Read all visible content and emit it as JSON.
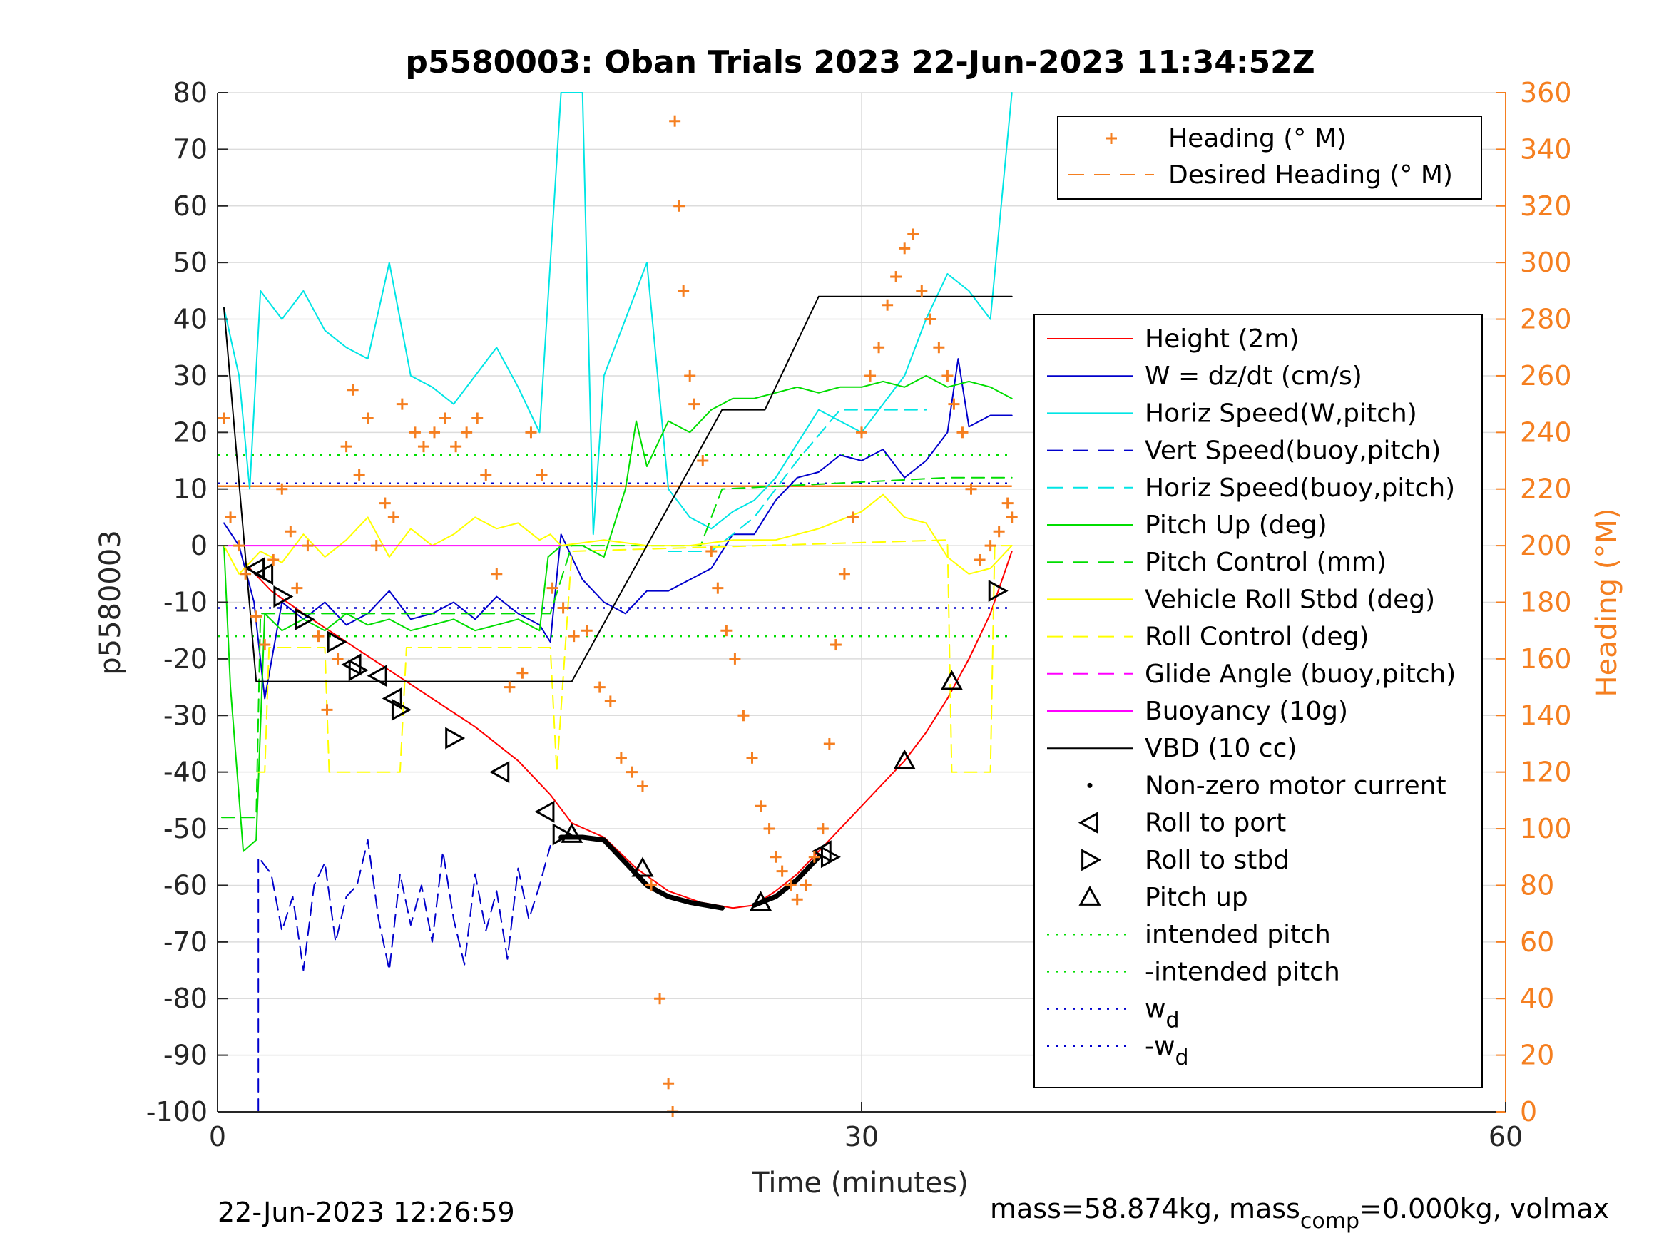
{
  "chart_data": {
    "type": "line",
    "title": "p5580003: Oban Trials 2023 22-Jun-2023 11:34:52Z",
    "xlabel": "Time (minutes)",
    "ylabel": "p5580003",
    "ylabel_right": "Heading (°M)",
    "xlim": [
      0,
      60
    ],
    "ylim": [
      -100,
      80
    ],
    "ylim_right": [
      0,
      360
    ],
    "xticks": [
      "0",
      "30",
      "60"
    ],
    "yticks": [
      "80",
      "70",
      "60",
      "50",
      "40",
      "30",
      "20",
      "10",
      "0",
      "-10",
      "-20",
      "-30",
      "-40",
      "-50",
      "-60",
      "-70",
      "-80",
      "-90",
      "-100"
    ],
    "yticks_right": [
      "360",
      "340",
      "320",
      "300",
      "280",
      "260",
      "240",
      "220",
      "200",
      "180",
      "160",
      "140",
      "120",
      "100",
      "80",
      "60",
      "40",
      "20",
      "0"
    ],
    "grid": true,
    "colors": {
      "height": "#ff0000",
      "w": "#0000cc",
      "horiz_speed": "#00e5e5",
      "pitch": "#00dd00",
      "roll": "#ffff00",
      "glide": "#ff00ff",
      "buoyancy": "#ff00ff",
      "vbd": "#000000",
      "heading": "#f57f20",
      "axis_right": "#f57f20"
    },
    "legend_heading": [
      {
        "label": "Heading (° M)",
        "style": "plus",
        "color": "#f57f20"
      },
      {
        "label": "Desired Heading (° M)",
        "style": "dash",
        "color": "#f57f20"
      }
    ],
    "legend_main": [
      {
        "label": "Height (2m)",
        "style": "solid",
        "color": "#ff0000"
      },
      {
        "label": "W = dz/dt (cm/s)",
        "style": "solid",
        "color": "#0000cc"
      },
      {
        "label": "Horiz Speed(W,pitch)",
        "style": "solid",
        "color": "#00e5e5"
      },
      {
        "label": "Vert Speed(buoy,pitch)",
        "style": "dash",
        "color": "#0000cc"
      },
      {
        "label": "Horiz Speed(buoy,pitch)",
        "style": "dash",
        "color": "#00e5e5"
      },
      {
        "label": "Pitch Up (deg)",
        "style": "solid",
        "color": "#00dd00"
      },
      {
        "label": "Pitch Control (mm)",
        "style": "dash",
        "color": "#00dd00"
      },
      {
        "label": "Vehicle Roll Stbd (deg)",
        "style": "solid",
        "color": "#ffff00"
      },
      {
        "label": "Roll Control (deg)",
        "style": "dash",
        "color": "#ffff00"
      },
      {
        "label": "Glide Angle (buoy,pitch)",
        "style": "dash",
        "color": "#ff00ff"
      },
      {
        "label": "Buoyancy (10g)",
        "style": "solid",
        "color": "#ff00ff"
      },
      {
        "label": "VBD (10 cc)",
        "style": "solid",
        "color": "#000000"
      },
      {
        "label": "Non-zero motor current",
        "style": "dot",
        "color": "#000000"
      },
      {
        "label": "Roll to port",
        "style": "tri-left",
        "color": "#000000"
      },
      {
        "label": "Roll to stbd",
        "style": "tri-right",
        "color": "#000000"
      },
      {
        "label": "Pitch up",
        "style": "tri-up",
        "color": "#000000"
      },
      {
        "label": "intended pitch",
        "style": "dotted",
        "color": "#00dd00"
      },
      {
        "label": "-intended pitch",
        "style": "dotted",
        "color": "#00dd00"
      },
      {
        "label": "w",
        "sub": "d",
        "style": "dotted",
        "color": "#0000cc"
      },
      {
        "label": "-w",
        "sub": "d",
        "style": "dotted",
        "color": "#0000cc"
      }
    ],
    "series": [
      {
        "name": "Height (2m)",
        "kind": "line",
        "color": "#ff0000",
        "width": 2,
        "x": [
          1.5,
          2.5,
          4,
          6,
          8,
          10,
          12,
          14,
          15.5,
          16.5,
          18,
          19.5,
          21,
          22.5,
          24,
          25,
          26,
          27,
          28,
          29,
          30,
          31,
          32,
          33,
          34,
          35,
          36,
          37
        ],
        "y": [
          -4,
          -8,
          -12,
          -17,
          -22,
          -27,
          -32,
          -38,
          -44,
          -49,
          -51.5,
          -57,
          -61,
          -63,
          -64,
          -63.5,
          -61,
          -58,
          -54,
          -50,
          -46,
          -42,
          -38,
          -33,
          -27,
          -20,
          -12,
          -1
        ]
      },
      {
        "name": "W = dz/dt (cm/s)",
        "kind": "line",
        "color": "#0000cc",
        "width": 2,
        "x": [
          0.3,
          1,
          1.7,
          2.2,
          3,
          4,
          5,
          6,
          7,
          8,
          9,
          10,
          11,
          12,
          13,
          14,
          15,
          15.5,
          16,
          17,
          18,
          19,
          20,
          21,
          22,
          23,
          24,
          25,
          26,
          27,
          28,
          29,
          30,
          31,
          32,
          33,
          34,
          34.5,
          35,
          36,
          37
        ],
        "y": [
          4,
          0,
          -10,
          -27,
          -10,
          -13,
          -10,
          -14,
          -12,
          -8,
          -13,
          -12,
          -10,
          -13,
          -9,
          -12,
          -14,
          -17,
          2,
          -6,
          -10,
          -12,
          -8,
          -8,
          -6,
          -4,
          2,
          2,
          8,
          12,
          13,
          16,
          15,
          17,
          12,
          15,
          20,
          33,
          21,
          23,
          23
        ]
      },
      {
        "name": "Horiz Speed(W,pitch)",
        "kind": "line",
        "color": "#00e5e5",
        "width": 2,
        "x": [
          0.3,
          1,
          1.5,
          2,
          3,
          4,
          5,
          6,
          7,
          8,
          9,
          10,
          11,
          12,
          13,
          14,
          15,
          15.5,
          16,
          17,
          17.5,
          18,
          19,
          20,
          21,
          22,
          23,
          24,
          25,
          26,
          27,
          28,
          29,
          30,
          31,
          32,
          33,
          34,
          35,
          36,
          37
        ],
        "y": [
          42,
          30,
          10,
          45,
          40,
          45,
          38,
          35,
          33,
          50,
          30,
          28,
          25,
          30,
          35,
          28,
          20,
          50,
          90,
          90,
          2,
          30,
          40,
          50,
          10,
          5,
          3,
          6,
          8,
          12,
          18,
          24,
          22,
          20,
          25,
          30,
          40,
          48,
          45,
          40,
          90
        ]
      },
      {
        "name": "Horiz Speed(buoy,pitch)",
        "kind": "line",
        "color": "#00e5e5",
        "dash": "18,10",
        "width": 2,
        "x": [
          21,
          23,
          25,
          27,
          29,
          31,
          33
        ],
        "y": [
          -1,
          -1,
          5,
          15,
          24,
          24,
          24
        ]
      },
      {
        "name": "Vert Speed(buoy,pitch)",
        "kind": "line",
        "color": "#0000cc",
        "dash": "18,10",
        "width": 2,
        "x": [
          1.9,
          1.9,
          2.5,
          3,
          3.5,
          4,
          4.5,
          5,
          5.5,
          6,
          6.5,
          7,
          7.5,
          8,
          8.5,
          9,
          9.5,
          10,
          10.5,
          11,
          11.5,
          12,
          12.5,
          13,
          13.5,
          14,
          14.5,
          15,
          15.5
        ],
        "y": [
          -100,
          -55,
          -58,
          -68,
          -62,
          -75,
          -60,
          -56,
          -70,
          -62,
          -60,
          -52,
          -66,
          -75,
          -58,
          -67,
          -60,
          -70,
          -54,
          -66,
          -74,
          -58,
          -68,
          -61,
          -73,
          -57,
          -66,
          -60,
          -53
        ]
      },
      {
        "name": "Pitch Up (deg)",
        "kind": "line",
        "color": "#00dd00",
        "width": 2,
        "x": [
          0.3,
          0.6,
          1.2,
          1.8,
          2.2,
          3,
          4,
          5,
          6,
          7,
          8,
          9,
          10,
          11,
          12,
          13,
          14,
          15,
          15.4,
          16,
          17,
          18,
          19,
          19.5,
          20,
          21,
          22,
          23,
          24,
          25,
          26,
          27,
          28,
          29,
          30,
          31,
          32,
          33,
          34,
          35,
          36,
          37
        ],
        "y": [
          0,
          -25,
          -54,
          -52,
          -12,
          -15,
          -13,
          -15,
          -12,
          -14,
          -13,
          -15,
          -14,
          -13,
          -15,
          -14,
          -13,
          -15,
          -2,
          0,
          0,
          -2,
          10,
          22,
          14,
          22,
          20,
          24,
          26,
          26,
          27,
          28,
          27,
          28,
          28,
          29,
          28,
          30,
          28,
          29,
          28,
          26
        ]
      },
      {
        "name": "Pitch Control (mm)",
        "kind": "line",
        "color": "#00dd00",
        "dash": "18,10",
        "width": 2,
        "x": [
          0.2,
          1.8,
          2.0,
          15.5,
          16.5,
          22.5,
          23.5,
          34,
          37
        ],
        "y": [
          -48,
          -48,
          -12,
          -12,
          0,
          0,
          10,
          12,
          12
        ]
      },
      {
        "name": "Vehicle Roll Stbd (deg)",
        "kind": "line",
        "color": "#ffff00",
        "width": 2,
        "x": [
          0.3,
          1,
          2,
          3,
          4,
          5,
          6,
          7,
          8,
          9,
          10,
          11,
          12,
          13,
          14,
          15,
          15.5,
          16,
          18,
          20,
          22,
          24,
          26,
          28,
          30,
          31,
          32,
          33,
          34,
          35,
          36,
          37
        ],
        "y": [
          0,
          -5,
          -1,
          -3,
          2,
          -2,
          1,
          5,
          -2,
          3,
          0,
          2,
          5,
          3,
          4,
          1,
          2,
          0,
          1,
          0,
          0,
          1,
          1,
          3,
          6,
          9,
          5,
          4,
          -2,
          -5,
          -4,
          0
        ]
      },
      {
        "name": "Roll Control (deg)",
        "kind": "line",
        "color": "#ffff00",
        "dash": "18,10",
        "width": 2,
        "x": [
          1.9,
          2.2,
          2.4,
          3.0,
          5.0,
          5.2,
          8.5,
          8.8,
          15.5,
          15.8,
          16.5,
          34,
          34.2,
          36,
          36.2,
          37
        ],
        "y": [
          -40,
          -40,
          -18,
          -18,
          -18,
          -40,
          -40,
          -18,
          -18,
          -40,
          -1,
          1,
          -40,
          -40,
          0,
          0
        ]
      },
      {
        "name": "Buoyancy (10g)",
        "kind": "line",
        "color": "#ff00ff",
        "width": 2,
        "x": [
          0.5,
          16
        ],
        "y": [
          0,
          0
        ]
      },
      {
        "name": "VBD (10 cc)",
        "kind": "line",
        "color": "#000000",
        "width": 2,
        "x": [
          0.3,
          1.8,
          16.5,
          20,
          23.5,
          25.5,
          28,
          32,
          37
        ],
        "y": [
          42,
          -24,
          -24,
          0,
          24,
          24,
          44,
          44,
          44
        ]
      },
      {
        "name": "Non-zero motor current",
        "kind": "line",
        "color": "#000000",
        "width": 7,
        "x": [
          16,
          17,
          18,
          19,
          20,
          21,
          22,
          23.5
        ],
        "y": [
          -51.5,
          -51.5,
          -52,
          -56,
          -60,
          -62,
          -63,
          -64
        ]
      },
      {
        "name": "Non-zero motor current 2",
        "kind": "line",
        "color": "#000000",
        "width": 7,
        "x": [
          25,
          26,
          27,
          28
        ],
        "y": [
          -63.5,
          -62,
          -59,
          -55
        ]
      }
    ],
    "ref_lines": [
      {
        "name": "intended pitch",
        "y": 16,
        "color": "#00dd00",
        "dash": "3,9"
      },
      {
        "name": "-intended pitch",
        "y": -16,
        "color": "#00dd00",
        "dash": "3,9"
      },
      {
        "name": "w_d",
        "y": 11,
        "color": "#0000cc",
        "dash": "3,9"
      },
      {
        "name": "-w_d",
        "y": -11,
        "color": "#0000cc",
        "dash": "3,9"
      },
      {
        "name": "Desired Heading (° M)",
        "y": 10.5,
        "color": "#f57f20",
        "dash": "none"
      }
    ],
    "markers": {
      "roll_to_port": {
        "x": [
          1.8,
          2.2,
          6.3,
          7.5,
          8.2,
          13.2,
          15.3,
          28.2
        ],
        "y": [
          -4,
          -5,
          -21,
          -23,
          -27,
          -40,
          -47,
          -54
        ]
      },
      "roll_to_stbd": {
        "x": [
          3,
          4,
          5.5,
          6.5,
          8.5,
          11,
          16,
          28.5,
          36.3
        ],
        "y": [
          -9,
          -13,
          -17,
          -22,
          -29,
          -34,
          -51,
          -55,
          -8
        ]
      },
      "pitch_up": {
        "x": [
          16.5,
          19.8,
          25.3,
          32,
          34.2
        ],
        "y": [
          -51,
          -57,
          -63,
          -38,
          -24
        ]
      }
    },
    "heading": {
      "x": [
        0.3,
        0.6,
        1,
        1.3,
        1.8,
        2.2,
        2.6,
        3,
        3.4,
        3.7,
        4.2,
        4.7,
        5.1,
        5.6,
        6,
        6.3,
        6.6,
        7,
        7.4,
        7.8,
        8.2,
        8.6,
        9.2,
        9.6,
        10.1,
        10.6,
        11.1,
        11.6,
        12.1,
        12.5,
        13,
        13.6,
        14.2,
        14.6,
        15.1,
        15.6,
        16.1,
        16.6,
        17.2,
        17.8,
        18.3,
        18.8,
        19.3,
        19.8,
        20.2,
        20.6,
        21,
        21.2,
        21.3,
        21.5,
        21.7,
        22,
        22.2,
        22.6,
        23,
        23.3,
        23.7,
        24.1,
        24.5,
        24.9,
        25.3,
        25.7,
        26,
        26.3,
        26.7,
        27,
        27.4,
        27.8,
        28.2,
        28.5,
        28.8,
        29.2,
        29.6,
        30,
        30.4,
        30.8,
        31.2,
        31.6,
        32,
        32.4,
        32.8,
        33.2,
        33.6,
        34,
        34.3,
        34.7,
        35.1,
        35.5,
        36,
        36.4,
        36.8,
        37
      ],
      "y": [
        245,
        210,
        200,
        190,
        175,
        165,
        195,
        220,
        205,
        185,
        200,
        168,
        142,
        160,
        235,
        255,
        225,
        245,
        200,
        215,
        210,
        250,
        240,
        235,
        240,
        245,
        235,
        240,
        245,
        225,
        190,
        150,
        155,
        240,
        225,
        185,
        178,
        168,
        170,
        150,
        145,
        125,
        120,
        115,
        80,
        40,
        10,
        0,
        350,
        320,
        290,
        260,
        250,
        230,
        198,
        185,
        170,
        160,
        140,
        125,
        108,
        100,
        90,
        85,
        80,
        75,
        80,
        90,
        100,
        130,
        165,
        190,
        210,
        240,
        260,
        270,
        285,
        295,
        305,
        310,
        290,
        280,
        270,
        260,
        250,
        240,
        220,
        195,
        200,
        205,
        215,
        210
      ]
    },
    "footer_left": "22-Jun-2023 12:26:59",
    "footer_right_prefix": "mass=58.874kg, mass",
    "footer_right_sub": "comp",
    "footer_right_suffix": "=0.000kg, volmax"
  }
}
